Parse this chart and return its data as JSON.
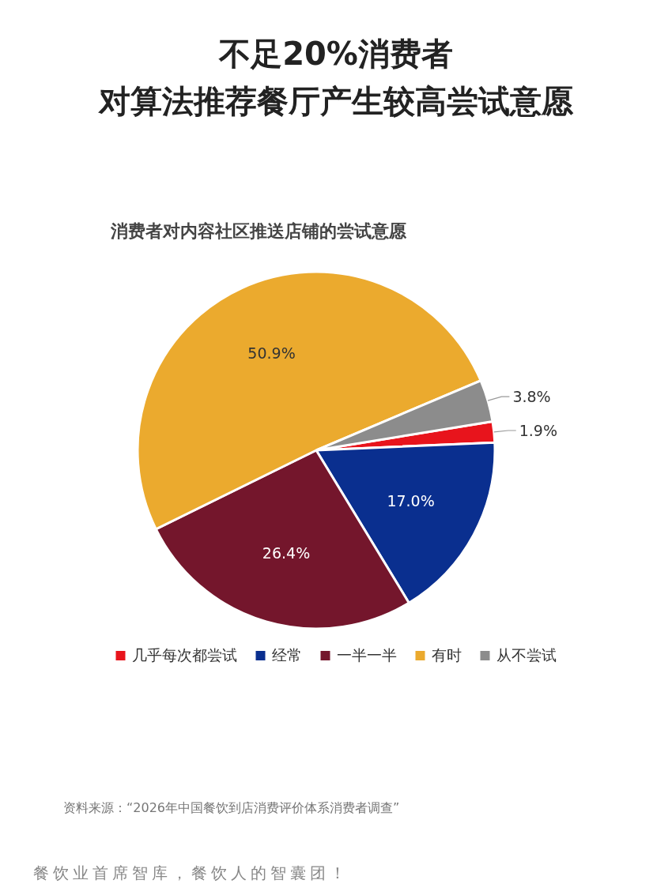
{
  "chart_data": {
    "type": "pie",
    "title": "不足20%消费者",
    "subtitle": "对算法推荐餐厅产生较高尝试意愿",
    "categories": [
      "几乎每次都尝试",
      "经常",
      "一半一半",
      "有时",
      "从不尝试"
    ],
    "values": [
      1.9,
      17.0,
      26.4,
      50.9,
      3.8
    ],
    "colors": [
      "#e8141c",
      "#0a2f8f",
      "#74162c",
      "#ebaa2e",
      "#8c8c8c"
    ],
    "value_labels": [
      "1.9%",
      "17.0%",
      "26.4%",
      "50.9%",
      "3.8%"
    ],
    "legend": "bottom",
    "annotations": [
      "消费者对内容社区推送店铺的尝试意愿",
      "资料来源：“2026年中国餐饮到店消费评价体系消费者调查”",
      "餐饮业首席智库，餐饮人的智囊团！"
    ]
  }
}
